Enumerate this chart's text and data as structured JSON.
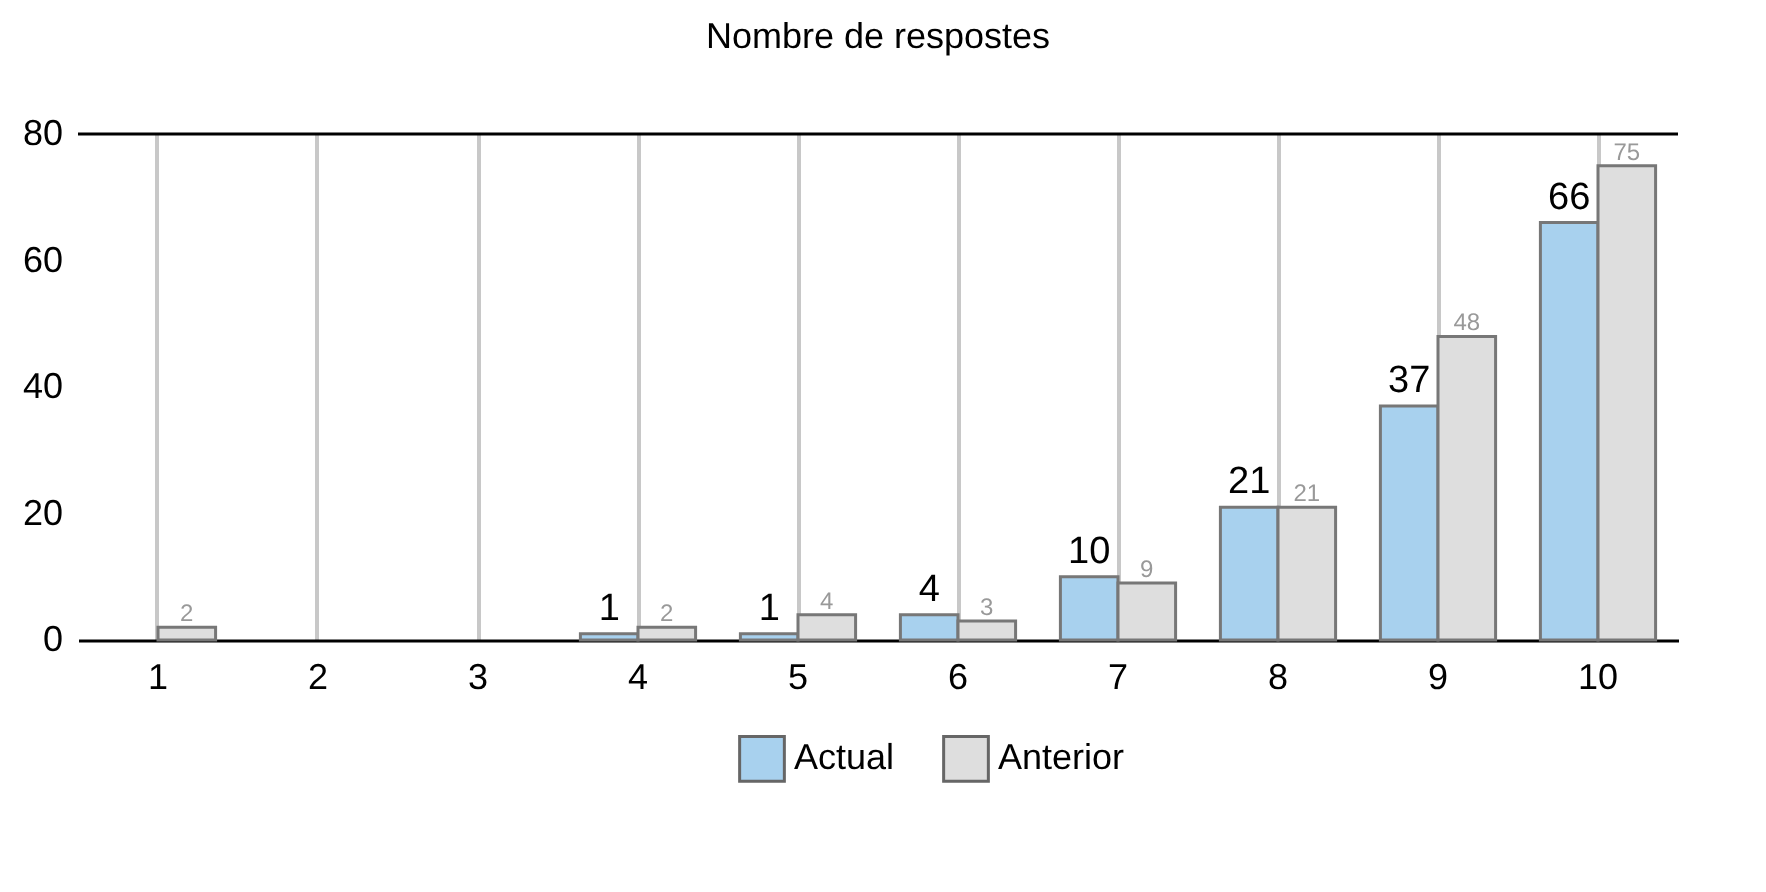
{
  "chart_data": {
    "type": "bar",
    "title": "Nombre de respostes",
    "categories": [
      "1",
      "2",
      "3",
      "4",
      "5",
      "6",
      "7",
      "8",
      "9",
      "10"
    ],
    "series": [
      {
        "name": "Actual",
        "color": "#a8d1ee",
        "values": [
          null,
          null,
          null,
          1,
          1,
          4,
          10,
          21,
          37,
          66
        ]
      },
      {
        "name": "Anterior",
        "color": "#dedede",
        "values": [
          2,
          null,
          null,
          2,
          4,
          3,
          9,
          21,
          48,
          75
        ]
      }
    ],
    "ylim": [
      0,
      80
    ],
    "yticks": [
      0,
      20,
      40,
      60,
      80
    ],
    "grid": "x",
    "legend": "bottom",
    "data_labels": true
  }
}
